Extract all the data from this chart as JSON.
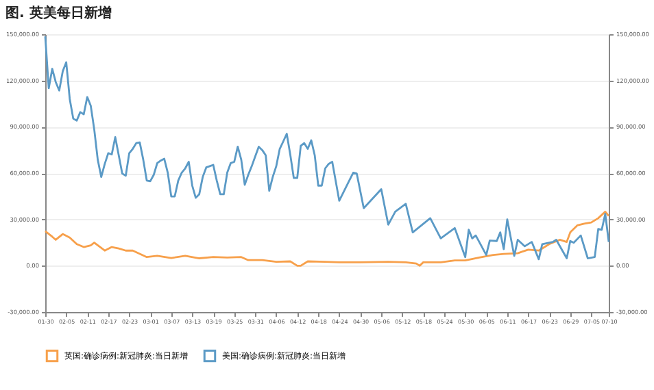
{
  "chart_data": {
    "type": "line",
    "title": "图. 英美每日新增",
    "xlim": [
      "--01-30",
      "--07-10"
    ],
    "xticks": [
      {
        "value": "--01-30",
        "label": "01-30"
      },
      {
        "value": "--02-05",
        "label": "02-05"
      },
      {
        "value": "--02-11",
        "label": "02-11"
      },
      {
        "value": "--02-17",
        "label": "02-17"
      },
      {
        "value": "--02-23",
        "label": "02-23"
      },
      {
        "value": "--03-01",
        "label": "03-01"
      },
      {
        "value": "--03-07",
        "label": "03-07"
      },
      {
        "value": "--03-13",
        "label": "03-13"
      },
      {
        "value": "--03-19",
        "label": "03-19"
      },
      {
        "value": "--03-25",
        "label": "03-25"
      },
      {
        "value": "--03-31",
        "label": "03-31"
      },
      {
        "value": "--04-06",
        "label": "04-06"
      },
      {
        "value": "--04-12",
        "label": "04-12"
      },
      {
        "value": "--04-18",
        "label": "04-18"
      },
      {
        "value": "--04-24",
        "label": "04-24"
      },
      {
        "value": "--04-30",
        "label": "04-30"
      },
      {
        "value": "--05-06",
        "label": "05-06"
      },
      {
        "value": "--05-12",
        "label": "05-12"
      },
      {
        "value": "--05-18",
        "label": "05-18"
      },
      {
        "value": "--05-24",
        "label": "05-24"
      },
      {
        "value": "--05-30",
        "label": "05-30"
      },
      {
        "value": "--06-05",
        "label": "06-05"
      },
      {
        "value": "--06-11",
        "label": "06-11"
      },
      {
        "value": "--06-17",
        "label": "06-17"
      },
      {
        "value": "--06-23",
        "label": "06-23"
      },
      {
        "value": "--06-29",
        "label": "06-29"
      },
      {
        "value": "--07-05",
        "label": "07-05"
      },
      {
        "value": "--07-10",
        "label": "07-10"
      }
    ],
    "ylim": [
      -30000,
      150000
    ],
    "yticks": [
      {
        "value": -30000,
        "label": "-30,000.00"
      },
      {
        "value": 0,
        "label": "0.00"
      },
      {
        "value": 30000,
        "label": "30,000.00"
      },
      {
        "value": 60000,
        "label": "60,000.00"
      },
      {
        "value": 90000,
        "label": "90,000.00"
      },
      {
        "value": 120000,
        "label": "120,000.00"
      },
      {
        "value": 150000,
        "label": "150,000.00"
      }
    ],
    "y2lim": [
      -30000,
      150000
    ],
    "y2ticks": [
      {
        "value": -30000,
        "label": "-30,000.00"
      },
      {
        "value": 0,
        "label": "0.00"
      },
      {
        "value": 30000,
        "label": "30,000.00"
      },
      {
        "value": 60000,
        "label": "60,000.00"
      },
      {
        "value": 90000,
        "label": "90,000.00"
      },
      {
        "value": 120000,
        "label": "120,000.00"
      },
      {
        "value": 150000,
        "label": "150,000.00"
      }
    ],
    "grid": "y",
    "legend": "bottom",
    "line_style": "solid",
    "series": [
      {
        "name": "英国:确诊病例:新冠肺炎:当日新增",
        "color": "#f7a04b",
        "x": [
          "--01-30",
          "--02-01",
          "--02-02",
          "--02-04",
          "--02-06",
          "--02-08",
          "--02-10",
          "--02-12",
          "--02-13",
          "--02-16",
          "--02-18",
          "--02-20",
          "--02-22",
          "--02-24",
          "--02-28",
          "--03-03",
          "--03-07",
          "--03-11",
          "--03-15",
          "--03-19",
          "--03-23",
          "--03-27",
          "--03-29",
          "--04-02",
          "--04-06",
          "--04-10",
          "--04-12",
          "--04-13",
          "--04-15",
          "--04-20",
          "--04-24",
          "--04-30",
          "--05-08",
          "--05-13",
          "--05-16",
          "--05-17",
          "--05-18",
          "--05-23",
          "--05-27",
          "--05-30",
          "--06-03",
          "--06-07",
          "--06-10",
          "--06-14",
          "--06-17",
          "--06-20",
          "--06-23",
          "--06-26",
          "--06-28",
          "--06-29",
          "--07-01",
          "--07-03",
          "--07-05",
          "--07-07",
          "--07-09",
          "--07-10"
        ],
        "values": [
          22400,
          18800,
          16800,
          20500,
          18200,
          14000,
          12100,
          13200,
          14900,
          9800,
          12100,
          11200,
          9800,
          9800,
          5600,
          6400,
          5000,
          6400,
          4800,
          5600,
          5300,
          5600,
          3600,
          3600,
          2500,
          2800,
          0,
          0,
          2800,
          2500,
          2200,
          2200,
          2500,
          2200,
          1400,
          0,
          2200,
          2200,
          3400,
          3400,
          5300,
          7000,
          7600,
          8100,
          10400,
          9800,
          14000,
          16800,
          15400,
          21600,
          26100,
          27200,
          28000,
          30800,
          35000,
          32200
        ]
      },
      {
        "name": "美国:确诊病例:新冠肺炎:当日新增",
        "color": "#5b9ac6",
        "x": [
          "--01-30",
          "--01-31",
          "--02-01",
          "--02-02",
          "--02-03",
          "--02-04",
          "--02-05",
          "--02-06",
          "--02-07",
          "--02-08",
          "--02-09",
          "--02-10",
          "--02-11",
          "--02-12",
          "--02-13",
          "--02-14",
          "--02-15",
          "--02-16",
          "--02-17",
          "--02-18",
          "--02-19",
          "--02-20",
          "--02-21",
          "--02-22",
          "--02-23",
          "--02-24",
          "--02-25",
          "--02-26",
          "--02-27",
          "--02-28",
          "--03-01",
          "--03-02",
          "--03-03",
          "--03-04",
          "--03-05",
          "--03-06",
          "--03-07",
          "--03-08",
          "--03-09",
          "--03-10",
          "--03-11",
          "--03-12",
          "--03-13",
          "--03-14",
          "--03-15",
          "--03-16",
          "--03-17",
          "--03-18",
          "--03-19",
          "--03-20",
          "--03-21",
          "--03-22",
          "--03-23",
          "--03-24",
          "--03-25",
          "--03-26",
          "--03-27",
          "--03-28",
          "--03-29",
          "--03-30",
          "--03-31",
          "--04-01",
          "--04-02",
          "--04-03",
          "--04-04",
          "--04-05",
          "--04-06",
          "--04-07",
          "--04-08",
          "--04-09",
          "--04-10",
          "--04-11",
          "--04-12",
          "--04-13",
          "--04-14",
          "--04-15",
          "--04-16",
          "--04-17",
          "--04-18",
          "--04-19",
          "--04-20",
          "--04-21",
          "--04-22",
          "--04-24",
          "--04-28",
          "--04-29",
          "--05-01",
          "--05-06",
          "--05-08",
          "--05-10",
          "--05-13",
          "--05-15",
          "--05-20",
          "--05-23",
          "--05-27",
          "--05-30",
          "--05-31",
          "--06-01",
          "--06-02",
          "--06-05",
          "--06-06",
          "--06-08",
          "--06-09",
          "--06-10",
          "--06-11",
          "--06-13",
          "--06-14",
          "--06-16",
          "--06-18",
          "--06-20",
          "--06-21",
          "--06-24",
          "--06-25",
          "--06-28",
          "--06-29",
          "--06-30",
          "--07-02",
          "--07-04",
          "--07-06",
          "--07-07",
          "--07-08",
          "--07-09",
          "--07-10"
        ],
        "values": [
          148600,
          115000,
          127600,
          119000,
          113500,
          126000,
          131800,
          108000,
          95300,
          94000,
          99500,
          98100,
          109300,
          103700,
          88300,
          68700,
          57500,
          65900,
          72900,
          72100,
          83300,
          71500,
          59700,
          58300,
          72900,
          75700,
          79400,
          79900,
          68700,
          55200,
          54700,
          58900,
          66500,
          68100,
          69300,
          60300,
          44900,
          44900,
          55200,
          60300,
          63100,
          67300,
          51900,
          44000,
          46300,
          57500,
          63700,
          64500,
          65300,
          55200,
          46300,
          46300,
          60300,
          66500,
          67300,
          77100,
          68700,
          52400,
          58900,
          64500,
          70900,
          77100,
          74900,
          71500,
          48500,
          57500,
          64500,
          75700,
          80500,
          85500,
          72100,
          56900,
          56900,
          77700,
          79400,
          75700,
          81300,
          71500,
          51900,
          51900,
          63100,
          66000,
          67300,
          42100,
          60300,
          59700,
          37300,
          49600,
          26600,
          35000,
          40100,
          21600,
          30800,
          17700,
          24400,
          5600,
          23300,
          17700,
          19600,
          7000,
          16300,
          16000,
          21600,
          10700,
          30000,
          6400,
          16800,
          12600,
          15400,
          4200,
          14000,
          15400,
          16800,
          4800,
          16000,
          14900,
          19600,
          4800,
          5600,
          23800,
          23300,
          33600,
          15400
        ]
      }
    ]
  }
}
